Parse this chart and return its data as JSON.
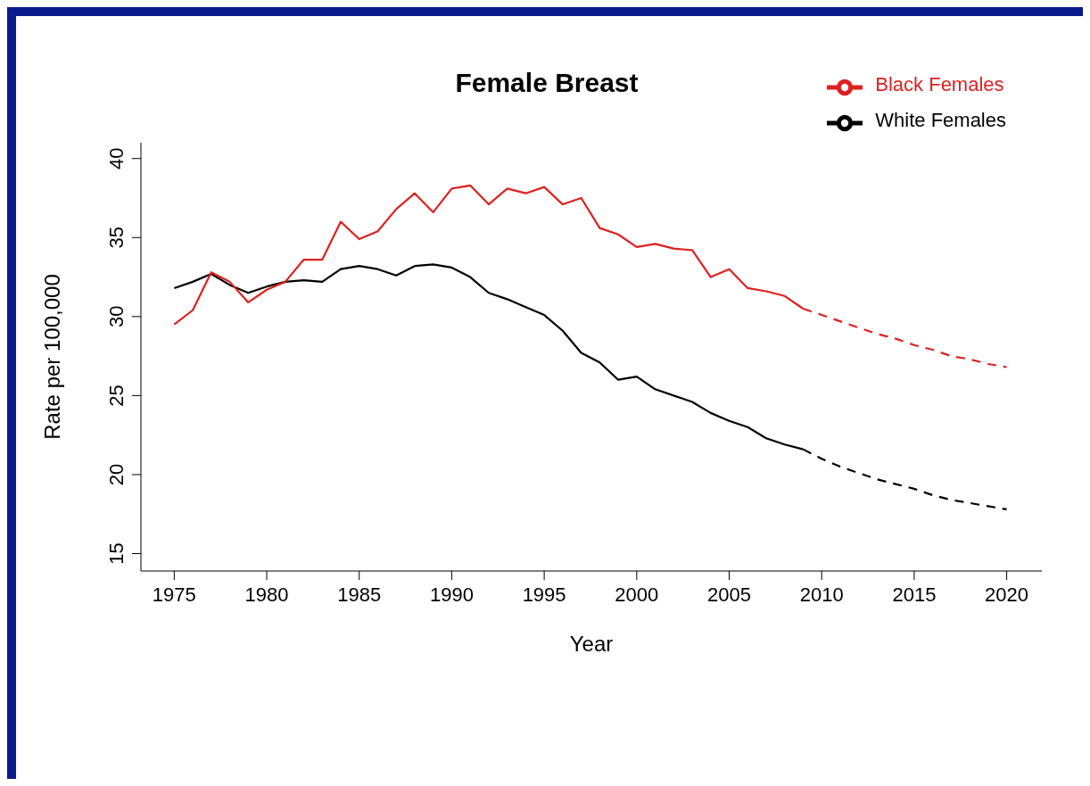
{
  "chart_data": {
    "type": "line",
    "title": "Female Breast",
    "xlabel": "Year",
    "ylabel": "Rate per 100,000",
    "xlim": [
      1973.2,
      2021.9
    ],
    "ylim": [
      13.9,
      41
    ],
    "xticks": [
      1975,
      1980,
      1985,
      1990,
      1995,
      2000,
      2005,
      2010,
      2015,
      2020
    ],
    "yticks": [
      15,
      20,
      25,
      30,
      35,
      40
    ],
    "grid": false,
    "legend": "top right",
    "series": [
      {
        "name": "White Females",
        "color": "#000000",
        "line_style": "solid",
        "x": [
          1975,
          1976,
          1977,
          1978,
          1979,
          1980,
          1981,
          1982,
          1983,
          1984,
          1985,
          1986,
          1987,
          1988,
          1989,
          1990,
          1991,
          1992,
          1993,
          1994,
          1995,
          1996,
          1997,
          1998,
          1999,
          2000,
          2001,
          2002,
          2003,
          2004,
          2005,
          2006,
          2007,
          2008,
          2009
        ],
        "values": [
          31.8,
          32.2,
          32.7,
          32.0,
          31.5,
          31.9,
          32.2,
          32.3,
          32.2,
          33.0,
          33.2,
          33.0,
          32.6,
          33.2,
          33.3,
          33.1,
          32.5,
          31.5,
          31.1,
          30.6,
          30.1,
          29.1,
          27.7,
          27.1,
          26.0,
          26.2,
          25.4,
          25.0,
          24.6,
          23.9,
          23.4,
          23.0,
          22.3,
          21.9,
          21.6
        ]
      },
      {
        "name": "Black Females",
        "color": "#df2020",
        "line_style": "solid",
        "x": [
          1975,
          1976,
          1977,
          1978,
          1979,
          1980,
          1981,
          1982,
          1983,
          1984,
          1985,
          1986,
          1987,
          1988,
          1989,
          1990,
          1991,
          1992,
          1993,
          1994,
          1995,
          1996,
          1997,
          1998,
          1999,
          2000,
          2001,
          2002,
          2003,
          2004,
          2005,
          2006,
          2007,
          2008,
          2009
        ],
        "values": [
          29.5,
          30.4,
          32.8,
          32.2,
          30.9,
          31.7,
          32.2,
          33.6,
          33.6,
          36.0,
          34.9,
          35.4,
          36.8,
          37.8,
          36.6,
          38.1,
          38.3,
          37.1,
          38.1,
          37.8,
          38.2,
          37.1,
          37.5,
          35.6,
          35.2,
          34.4,
          34.6,
          34.3,
          34.2,
          32.5,
          33.0,
          31.8,
          31.6,
          31.3,
          30.5
        ]
      },
      {
        "color": "#000000",
        "line_style": "dashed",
        "x": [
          2009,
          2010,
          2011,
          2012,
          2013,
          2014,
          2015,
          2016,
          2017,
          2018,
          2019,
          2020
        ],
        "values": [
          21.6,
          21.0,
          20.5,
          20.1,
          19.7,
          19.4,
          19.1,
          18.7,
          18.4,
          18.2,
          18.0,
          17.8
        ]
      },
      {
        "color": "#df2020",
        "line_style": "dashed",
        "x": [
          2009,
          2010,
          2011,
          2012,
          2013,
          2014,
          2015,
          2016,
          2017,
          2018,
          2019,
          2020
        ],
        "values": [
          30.5,
          30.1,
          29.7,
          29.3,
          28.9,
          28.6,
          28.2,
          27.9,
          27.5,
          27.3,
          27.0,
          26.8
        ]
      }
    ]
  }
}
